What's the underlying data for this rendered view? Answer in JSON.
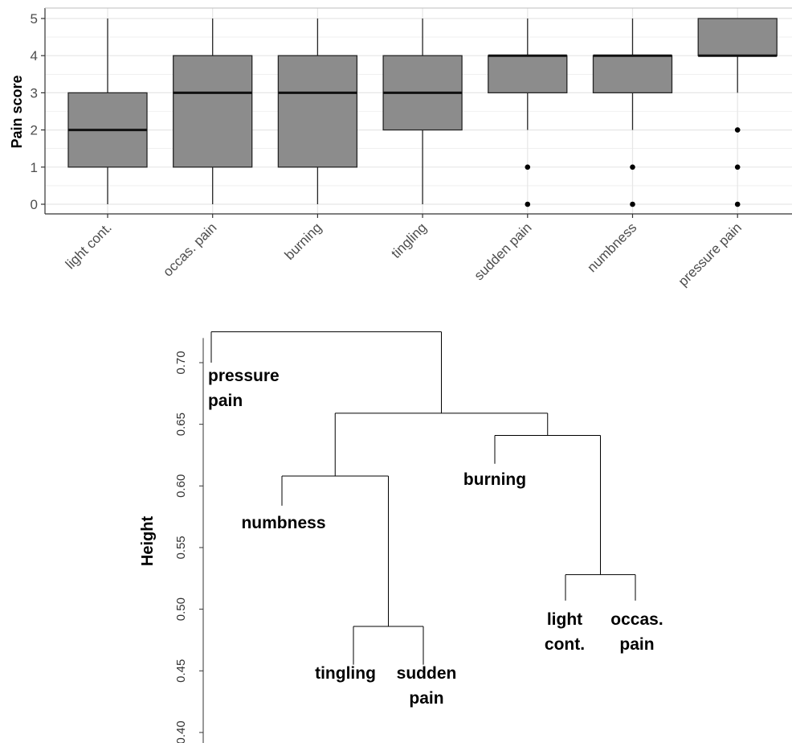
{
  "chart_data": [
    {
      "type": "boxplot",
      "ylabel": "Pain score",
      "xlabel": "",
      "title": "",
      "ylim": [
        0,
        5
      ],
      "yticks": [
        0,
        1,
        2,
        3,
        4,
        5
      ],
      "grid": true,
      "categories": [
        "light cont.",
        "occas. pain",
        "burning",
        "tingling",
        "sudden pain",
        "numbness",
        "pressure pain"
      ],
      "boxes": [
        {
          "min": 0,
          "q1": 1,
          "median": 2,
          "q3": 3,
          "max": 5,
          "outliers": []
        },
        {
          "min": 0,
          "q1": 1,
          "median": 3,
          "q3": 4,
          "max": 5,
          "outliers": []
        },
        {
          "min": 0,
          "q1": 1,
          "median": 3,
          "q3": 4,
          "max": 5,
          "outliers": []
        },
        {
          "min": 0,
          "q1": 2,
          "median": 3,
          "q3": 4,
          "max": 5,
          "outliers": []
        },
        {
          "min": 2,
          "q1": 3,
          "median": 4,
          "q3": 4,
          "max": 5,
          "outliers": [
            0,
            1
          ]
        },
        {
          "min": 2,
          "q1": 3,
          "median": 4,
          "q3": 4,
          "max": 5,
          "outliers": [
            0,
            1
          ]
        },
        {
          "min": 3,
          "q1": 4,
          "median": 4,
          "q3": 5,
          "max": 5,
          "outliers": [
            0,
            1,
            2
          ]
        }
      ],
      "colors": {
        "box_fill": "#8c8c8c",
        "box_stroke": "#262626",
        "grid": "#e6e6e6"
      }
    },
    {
      "type": "dendrogram",
      "ylabel": "Height",
      "ylim": [
        0.4,
        0.72
      ],
      "yticks": [
        "0.40",
        "0.45",
        "0.50",
        "0.55",
        "0.60",
        "0.65",
        "0.70"
      ],
      "leaves": [
        "pressure pain",
        "numbness",
        "tingling",
        "sudden pain",
        "burning",
        "light cont.",
        "occas. pain"
      ],
      "leaf_labels": [
        [
          "pressure",
          "pain"
        ],
        [
          "numbness"
        ],
        [
          "tingling"
        ],
        [
          "sudden",
          "pain"
        ],
        [
          "burning"
        ],
        [
          "light",
          "cont."
        ],
        [
          "occas.",
          "pain"
        ]
      ],
      "merges": [
        {
          "members": [
            "tingling",
            "sudden pain"
          ],
          "height": 0.486
        },
        {
          "members": [
            "light cont.",
            "occas. pain"
          ],
          "height": 0.528
        },
        {
          "members": [
            "numbness",
            "tingling",
            "sudden pain"
          ],
          "height": 0.608
        },
        {
          "members": [
            "burning",
            "light cont.",
            "occas. pain"
          ],
          "height": 0.641
        },
        {
          "members": [
            "numbness",
            "tingling",
            "sudden pain",
            "burning",
            "light cont.",
            "occas. pain"
          ],
          "height": 0.659
        },
        {
          "members": [
            "pressure pain",
            "numbness",
            "tingling",
            "sudden pain",
            "burning",
            "light cont.",
            "occas. pain"
          ],
          "height": 0.725
        }
      ]
    }
  ]
}
